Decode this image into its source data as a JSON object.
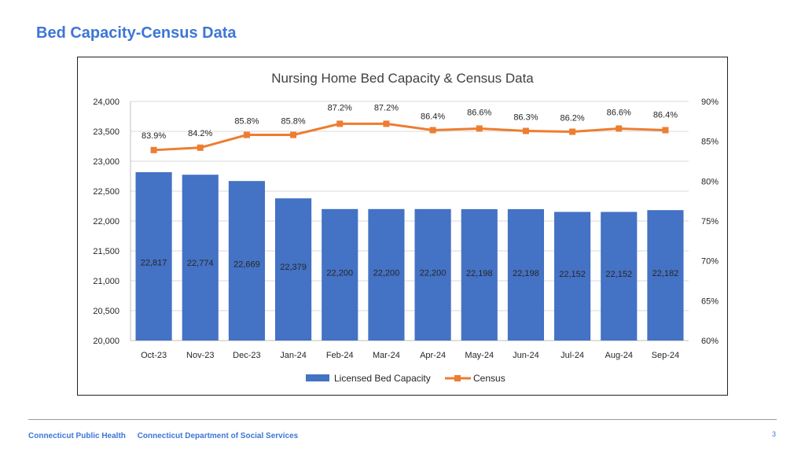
{
  "slide": {
    "title": "Bed Capacity-Census Data",
    "footer_org1": "Connecticut Public Health",
    "footer_org2": "Connecticut Department of Social Services",
    "page_number": "3"
  },
  "colors": {
    "accent": "#3d76d6",
    "bar": "#4472c4",
    "line": "#ed7d31"
  },
  "chart_data": {
    "type": "bar",
    "title": "Nursing Home Bed Capacity & Census Data",
    "categories": [
      "Oct-23",
      "Nov-23",
      "Dec-23",
      "Jan-24",
      "Feb-24",
      "Mar-24",
      "Apr-24",
      "May-24",
      "Jun-24",
      "Jul-24",
      "Aug-24",
      "Sep-24"
    ],
    "series": [
      {
        "name": "Licensed Bed Capacity",
        "type": "bar",
        "axis": "left",
        "values": [
          22817,
          22774,
          22669,
          22379,
          22200,
          22200,
          22200,
          22198,
          22198,
          22152,
          22152,
          22182
        ],
        "labels": [
          "22,817",
          "22,774",
          "22,669",
          "22,379",
          "22,200",
          "22,200",
          "22,200",
          "22,198",
          "22,198",
          "22,152",
          "22,152",
          "22,182"
        ]
      },
      {
        "name": "Census",
        "type": "line",
        "axis": "right",
        "values": [
          83.9,
          84.2,
          85.8,
          85.8,
          87.2,
          87.2,
          86.4,
          86.6,
          86.3,
          86.2,
          86.6,
          86.4
        ],
        "labels": [
          "83.9%",
          "84.2%",
          "85.8%",
          "85.8%",
          "87.2%",
          "87.2%",
          "86.4%",
          "86.6%",
          "86.3%",
          "86.2%",
          "86.6%",
          "86.4%"
        ]
      }
    ],
    "y_left": {
      "min": 20000,
      "max": 24000,
      "ticks": [
        20000,
        20500,
        21000,
        21500,
        22000,
        22500,
        23000,
        23500,
        24000
      ],
      "tick_labels": [
        "20,000",
        "20,500",
        "21,000",
        "21,500",
        "22,000",
        "22,500",
        "23,000",
        "23,500",
        "24,000"
      ]
    },
    "y_right": {
      "min": 60,
      "max": 90,
      "ticks": [
        60,
        65,
        70,
        75,
        80,
        85,
        90
      ],
      "tick_labels": [
        "60%",
        "65%",
        "70%",
        "75%",
        "80%",
        "85%",
        "90%"
      ]
    },
    "grid": true,
    "legend_position": "bottom"
  }
}
